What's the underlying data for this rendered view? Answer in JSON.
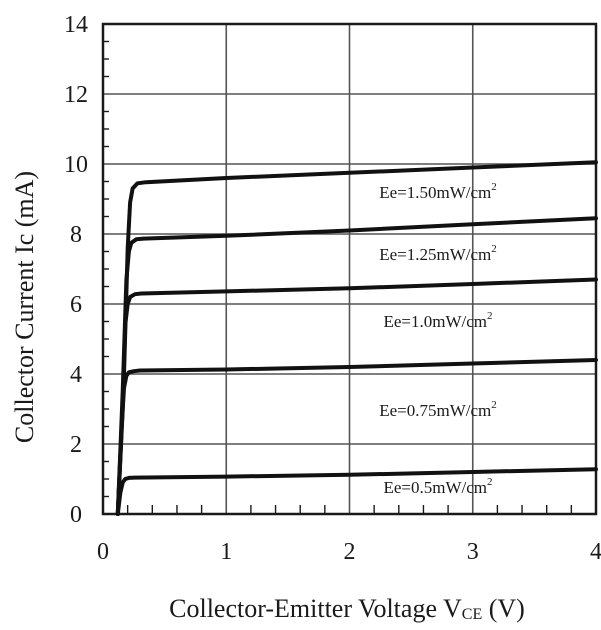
{
  "chart_data": {
    "type": "line",
    "title": "",
    "xlabel": {
      "main": "Collector-Emitter Voltage V",
      "subscript": "CE",
      "unit": " (V)"
    },
    "ylabel": "Collector Current Ic (mA)",
    "xlim": [
      0,
      4
    ],
    "ylim": [
      0,
      14
    ],
    "xticks": [
      "0",
      "1",
      "2",
      "3",
      "4"
    ],
    "yticks": [
      "0",
      "2",
      "4",
      "6",
      "8",
      "10",
      "12",
      "14"
    ],
    "grid": true,
    "series": [
      {
        "label_main": "Ee=1.50mW/cm",
        "label_sup": "2",
        "x": [
          0.12,
          0.17,
          0.2,
          0.22,
          0.24,
          0.28,
          0.35,
          1,
          2,
          3,
          4
        ],
        "y": [
          0,
          4.0,
          7.6,
          8.9,
          9.3,
          9.45,
          9.48,
          9.6,
          9.75,
          9.9,
          10.05
        ]
      },
      {
        "label_main": "Ee=1.25mW/cm",
        "label_sup": "2",
        "x": [
          0.12,
          0.16,
          0.19,
          0.21,
          0.23,
          0.27,
          0.33,
          1,
          2,
          3,
          4
        ],
        "y": [
          0,
          3.5,
          6.7,
          7.5,
          7.75,
          7.85,
          7.87,
          7.95,
          8.1,
          8.28,
          8.45
        ]
      },
      {
        "label_main": "Ee=1.0mW/cm",
        "label_sup": "2",
        "x": [
          0.12,
          0.16,
          0.18,
          0.2,
          0.22,
          0.26,
          0.31,
          1,
          2,
          3,
          4
        ],
        "y": [
          0,
          3.0,
          5.4,
          6.0,
          6.2,
          6.28,
          6.3,
          6.36,
          6.45,
          6.57,
          6.7
        ]
      },
      {
        "label_main": "Ee=0.75mW/cm",
        "label_sup": "2",
        "x": [
          0.12,
          0.15,
          0.17,
          0.19,
          0.21,
          0.25,
          0.3,
          1,
          2,
          3,
          4
        ],
        "y": [
          0,
          2.4,
          3.6,
          3.95,
          4.05,
          4.08,
          4.1,
          4.13,
          4.2,
          4.3,
          4.4
        ]
      },
      {
        "label_main": "Ee=0.5mW/cm",
        "label_sup": "2",
        "x": [
          0.12,
          0.14,
          0.16,
          0.18,
          0.21,
          0.26,
          1,
          2,
          3,
          4
        ],
        "y": [
          0,
          0.6,
          0.9,
          1.0,
          1.03,
          1.04,
          1.07,
          1.12,
          1.2,
          1.28
        ]
      }
    ]
  }
}
